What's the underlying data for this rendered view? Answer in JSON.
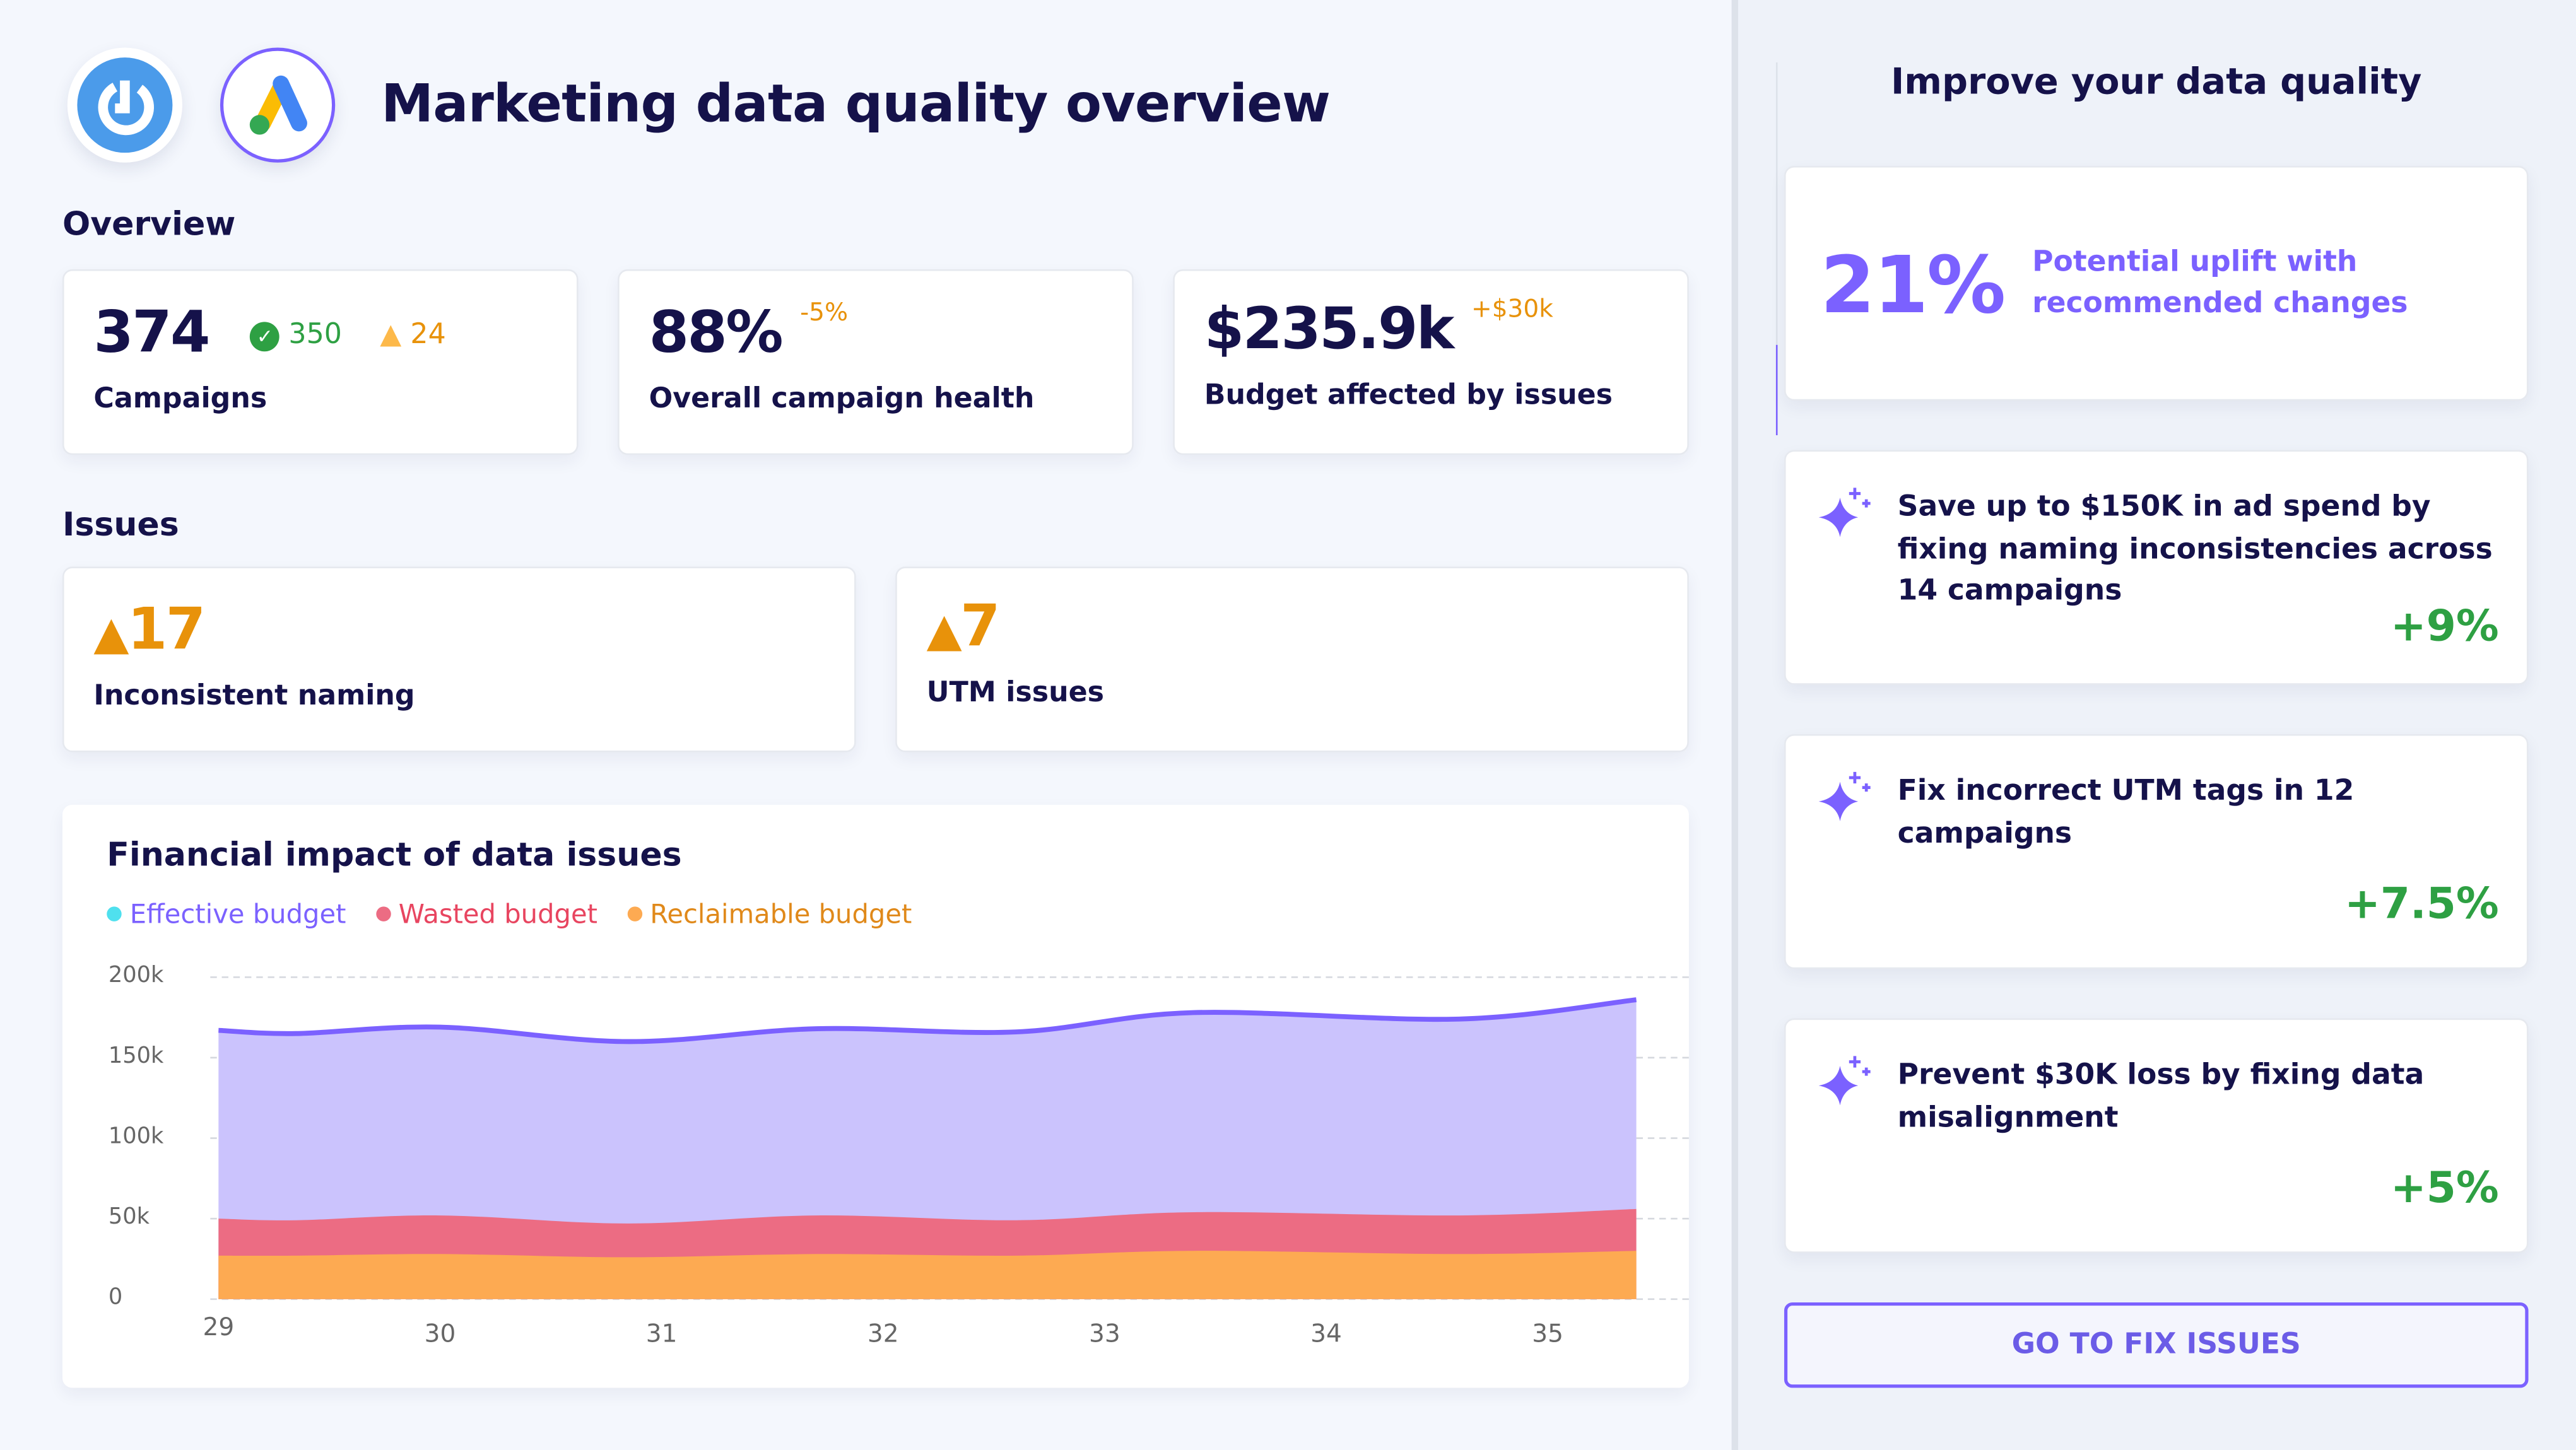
{
  "header": {
    "title": "Marketing data quality overview",
    "logos": [
      "dashboard-logo",
      "google-ads-logo"
    ]
  },
  "overview": {
    "heading": "Overview",
    "cards": [
      {
        "value": "374",
        "label": "Campaigns",
        "ok_count": "350",
        "warn_count": "24"
      },
      {
        "value": "88%",
        "delta": "-5%",
        "label": "Overall campaign health"
      },
      {
        "value": "$235.9k",
        "delta": "+$30k",
        "label": "Budget affected by issues"
      }
    ]
  },
  "issues": {
    "heading": "Issues",
    "cards": [
      {
        "value": "17",
        "label": "Inconsistent naming"
      },
      {
        "value": "7",
        "label": "UTM issues"
      }
    ]
  },
  "colors": {
    "accent": "#7b61ff",
    "navy": "#15124a",
    "warning": "#e8920a",
    "success": "#2ea043",
    "effective": "#cbc3fd",
    "wasted": "#ec6c83",
    "reclaimable": "#fdaa52"
  },
  "chart_data": {
    "type": "area",
    "stacked": true,
    "title": "Financial impact of data issues",
    "legend": [
      {
        "name": "Effective budget",
        "dot": "#4fe0ee",
        "text": "#7b61ff"
      },
      {
        "name": "Wasted budget",
        "dot": "#ec6c83",
        "text": "#e84560"
      },
      {
        "name": "Reclaimable budget",
        "dot": "#fdaa52",
        "text": "#e0891a"
      }
    ],
    "legend_position": "top-left",
    "x": [
      29,
      29.35,
      30,
      30.85,
      31.7,
      32.6,
      33.4,
      34.6,
      35.4
    ],
    "xticks": [
      "29",
      "30",
      "31",
      "32",
      "33",
      "34",
      "35"
    ],
    "yticks": [
      "0",
      "50k",
      "100k",
      "150k",
      "200k"
    ],
    "ylim": [
      0,
      200000
    ],
    "grid": true,
    "series": [
      {
        "name": "Reclaimable budget",
        "values": [
          27000,
          27000,
          28000,
          26000,
          28000,
          27000,
          30000,
          28000,
          30000
        ]
      },
      {
        "name": "Wasted budget",
        "values": [
          23000,
          22000,
          24000,
          21000,
          24000,
          22000,
          24000,
          24000,
          26000
        ]
      },
      {
        "name": "Effective budget",
        "values": [
          117000,
          116000,
          117000,
          113000,
          116000,
          117000,
          124000,
          122000,
          130000
        ]
      }
    ]
  },
  "sidebar": {
    "title": "Improve your data quality",
    "uplift": {
      "value": "21%",
      "label": "Potential uplift with recommended changes"
    },
    "recommendations": [
      {
        "text": "Save up to $150K in ad spend by fixing naming inconsistencies across 14 campaigns",
        "impact": "+9%"
      },
      {
        "text": "Fix incorrect UTM tags in 12 campaigns",
        "impact": "+7.5%"
      },
      {
        "text": "Prevent $30K loss by fixing data misalignment",
        "impact": "+5%"
      }
    ],
    "cta": "GO TO FIX ISSUES"
  }
}
